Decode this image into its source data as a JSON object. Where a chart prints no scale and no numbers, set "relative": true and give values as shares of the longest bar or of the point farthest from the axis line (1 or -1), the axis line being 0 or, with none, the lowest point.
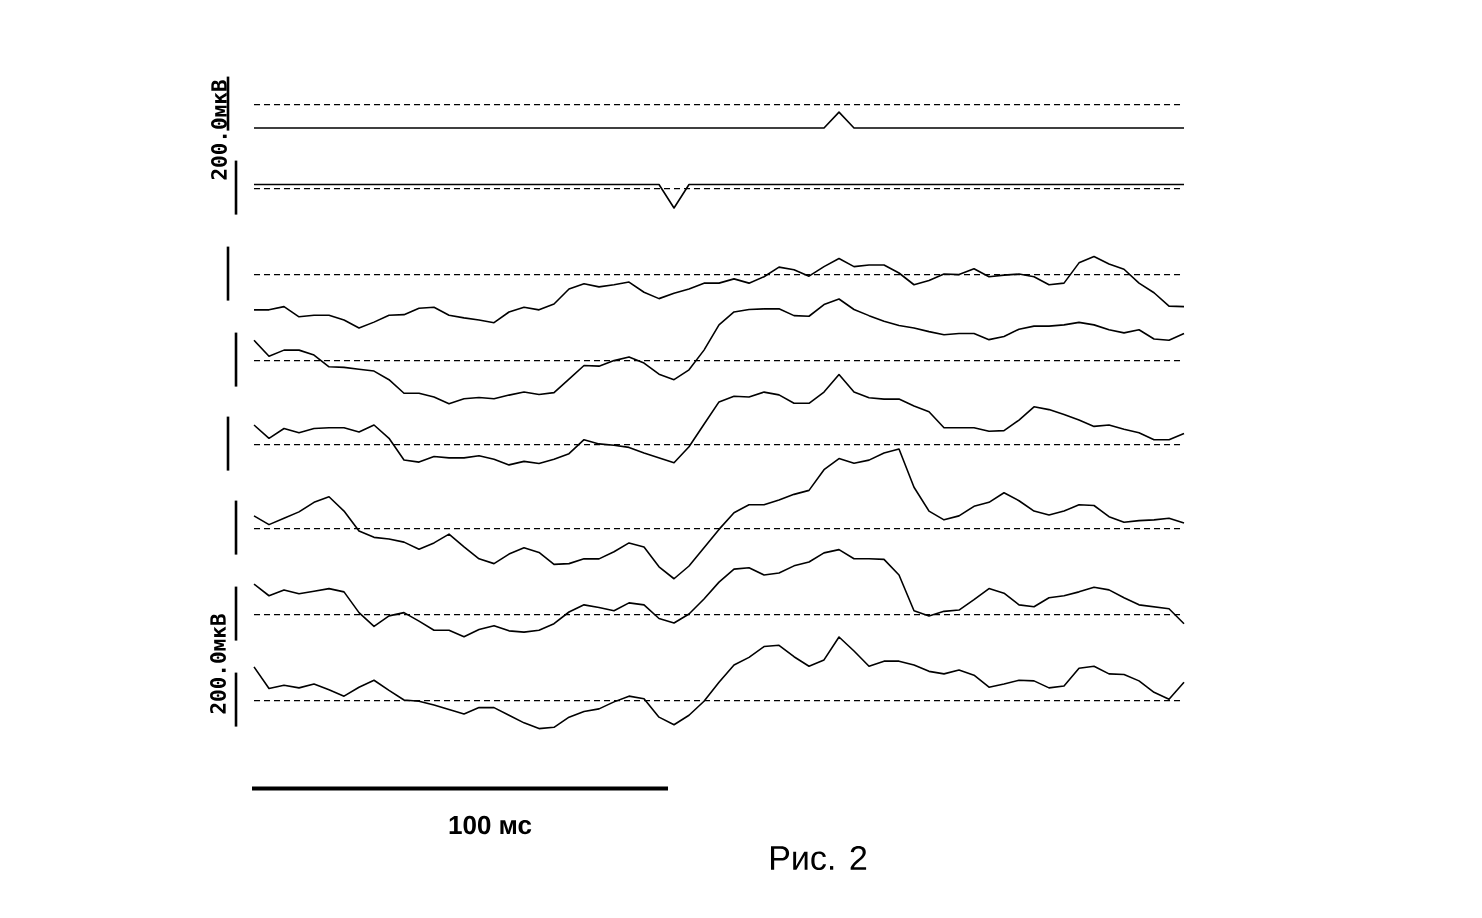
{
  "chart_data": [
    {
      "type": "line",
      "relative": true,
      "color": "#000000",
      "annotations": [
        "200.0мкВ"
      ],
      "ref_lines": [
        {
          "axis": "y",
          "value": 0,
          "line_style": "dashed"
        }
      ],
      "categories": [
        null,
        null,
        null,
        null,
        null,
        null,
        null,
        null,
        null,
        null,
        null,
        null,
        null,
        null,
        null,
        null,
        null,
        null,
        null,
        null,
        null,
        null,
        null,
        null,
        null,
        null,
        null,
        null,
        null,
        null,
        null,
        null,
        null,
        null,
        null,
        null,
        null,
        null,
        null,
        null,
        null,
        null,
        null,
        null,
        null,
        null,
        null,
        null,
        null,
        null,
        null,
        null,
        null,
        null,
        null,
        null,
        null,
        null,
        null,
        null,
        null,
        null,
        null
      ],
      "values": [
        -1,
        -1,
        -1,
        -1,
        -1,
        -1,
        -1,
        -1,
        -1,
        -1,
        -1,
        -1,
        -1,
        -1,
        -1,
        -1,
        -1,
        -1,
        -1,
        -1,
        -1,
        -1,
        -1,
        -1,
        -1,
        -1,
        -1,
        -1,
        -1,
        -1,
        -1,
        -1,
        -1,
        -1,
        -1,
        -1,
        -1,
        -1,
        -1,
        -0.32,
        -1,
        -1,
        -1,
        -1,
        -1,
        -1,
        -1,
        -1,
        -1,
        -1,
        -1,
        -1,
        -1,
        -1,
        -1,
        -1,
        -1,
        -1,
        -1,
        -1,
        -1,
        -1,
        -1
      ]
    },
    {
      "type": "line",
      "relative": true,
      "color": "#000000",
      "ref_lines": [
        {
          "axis": "y",
          "value": 0,
          "line_style": "dashed"
        }
      ],
      "categories": [
        null,
        null,
        null,
        null,
        null,
        null,
        null,
        null,
        null,
        null,
        null,
        null,
        null,
        null,
        null,
        null,
        null,
        null,
        null,
        null,
        null,
        null,
        null,
        null,
        null,
        null,
        null,
        null,
        null,
        null,
        null,
        null,
        null,
        null,
        null,
        null,
        null,
        null,
        null,
        null,
        null,
        null,
        null,
        null,
        null,
        null,
        null,
        null,
        null,
        null,
        null,
        null,
        null,
        null,
        null,
        null,
        null,
        null,
        null,
        null,
        null,
        null,
        null
      ],
      "values": [
        0.21,
        0.21,
        0.21,
        0.21,
        0.21,
        0.21,
        0.21,
        0.21,
        0.21,
        0.21,
        0.21,
        0.21,
        0.21,
        0.21,
        0.21,
        0.21,
        0.21,
        0.21,
        0.21,
        0.21,
        0.21,
        0.21,
        0.21,
        0.21,
        0.21,
        0.21,
        0.21,
        0.21,
        -1,
        0.21,
        0.21,
        0.21,
        0.21,
        0.21,
        0.21,
        0.21,
        0.21,
        0.21,
        0.21,
        0.21,
        0.21,
        0.21,
        0.21,
        0.21,
        0.21,
        0.21,
        0.21,
        0.21,
        0.21,
        0.21,
        0.21,
        0.21,
        0.21,
        0.21,
        0.21,
        0.21,
        0.21,
        0.21,
        0.21,
        0.21,
        0.21,
        0.21,
        0.21
      ]
    },
    {
      "type": "line",
      "relative": true,
      "color": "#000000",
      "ref_lines": [
        {
          "axis": "y",
          "value": 0,
          "line_style": "dashed"
        }
      ],
      "categories": [
        null,
        null,
        null,
        null,
        null,
        null,
        null,
        null,
        null,
        null,
        null,
        null,
        null,
        null,
        null,
        null,
        null,
        null,
        null,
        null,
        null,
        null,
        null,
        null,
        null,
        null,
        null,
        null,
        null,
        null,
        null,
        null,
        null,
        null,
        null,
        null,
        null,
        null,
        null,
        null,
        null,
        null,
        null,
        null,
        null,
        null,
        null,
        null,
        null,
        null,
        null,
        null,
        null,
        null,
        null,
        null,
        null,
        null,
        null,
        null,
        null,
        null,
        null
      ],
      "values": [
        -0.66,
        -0.66,
        -0.6,
        -0.79,
        -0.76,
        -0.76,
        -0.85,
        -1,
        -0.89,
        -0.76,
        -0.75,
        -0.63,
        -0.61,
        -0.76,
        -0.81,
        -0.85,
        -0.9,
        -0.7,
        -0.61,
        -0.66,
        -0.55,
        -0.27,
        -0.17,
        -0.23,
        -0.19,
        -0.14,
        -0.33,
        -0.45,
        -0.35,
        -0.27,
        -0.16,
        -0.16,
        -0.08,
        -0.16,
        -0.04,
        0.14,
        0.09,
        -0.03,
        0.15,
        0.3,
        0.15,
        0.18,
        0.18,
        0.03,
        -0.19,
        -0.11,
        0.01,
        0,
        0.11,
        -0.04,
        -0.01,
        0.01,
        -0.04,
        -0.19,
        -0.16,
        0.22,
        0.34,
        0.2,
        0.1,
        -0.16,
        -0.34,
        -0.59,
        -0.6
      ]
    },
    {
      "type": "line",
      "relative": true,
      "color": "#000000",
      "ref_lines": [
        {
          "axis": "y",
          "value": 0,
          "line_style": "dashed"
        }
      ],
      "categories": [
        null,
        null,
        null,
        null,
        null,
        null,
        null,
        null,
        null,
        null,
        null,
        null,
        null,
        null,
        null,
        null,
        null,
        null,
        null,
        null,
        null,
        null,
        null,
        null,
        null,
        null,
        null,
        null,
        null,
        null,
        null,
        null,
        null,
        null,
        null,
        null,
        null,
        null,
        null,
        null,
        null,
        null,
        null,
        null,
        null,
        null,
        null,
        null,
        null,
        null,
        null,
        null,
        null,
        null,
        null,
        null,
        null,
        null,
        null,
        null,
        null,
        null,
        null
      ],
      "values": [
        0.33,
        0.07,
        0.17,
        0.17,
        0.09,
        -0.1,
        -0.11,
        -0.14,
        -0.17,
        -0.31,
        -0.53,
        -0.53,
        -0.59,
        -0.7,
        -0.62,
        -0.6,
        -0.62,
        -0.56,
        -0.51,
        -0.55,
        -0.52,
        -0.3,
        -0.08,
        -0.09,
        0,
        0.06,
        -0.04,
        -0.22,
        -0.31,
        -0.15,
        0.17,
        0.58,
        0.79,
        0.83,
        0.84,
        0.84,
        0.73,
        0.72,
        0.91,
        1,
        0.83,
        0.73,
        0.64,
        0.57,
        0.53,
        0.47,
        0.42,
        0.44,
        0.44,
        0.34,
        0.39,
        0.51,
        0.56,
        0.56,
        0.58,
        0.62,
        0.58,
        0.5,
        0.45,
        0.5,
        0.35,
        0.33,
        0.44
      ]
    },
    {
      "type": "line",
      "relative": true,
      "color": "#000000",
      "ref_lines": [
        {
          "axis": "y",
          "value": 0,
          "line_style": "dashed"
        }
      ],
      "categories": [
        null,
        null,
        null,
        null,
        null,
        null,
        null,
        null,
        null,
        null,
        null,
        null,
        null,
        null,
        null,
        null,
        null,
        null,
        null,
        null,
        null,
        null,
        null,
        null,
        null,
        null,
        null,
        null,
        null,
        null,
        null,
        null,
        null,
        null,
        null,
        null,
        null,
        null,
        null,
        null,
        null,
        null,
        null,
        null,
        null,
        null,
        null,
        null,
        null,
        null,
        null,
        null,
        null,
        null,
        null,
        null,
        null,
        null,
        null,
        null,
        null,
        null,
        null
      ],
      "values": [
        0.28,
        0.09,
        0.23,
        0.17,
        0.23,
        0.24,
        0.24,
        0.18,
        0.28,
        0.09,
        -0.22,
        -0.25,
        -0.17,
        -0.19,
        -0.19,
        -0.16,
        -0.21,
        -0.29,
        -0.24,
        -0.27,
        -0.21,
        -0.13,
        0.07,
        0.01,
        -0.01,
        -0.04,
        -0.12,
        -0.19,
        -0.26,
        -0.03,
        0.29,
        0.61,
        0.69,
        0.68,
        0.75,
        0.71,
        0.59,
        0.59,
        0.75,
        1,
        0.75,
        0.67,
        0.65,
        0.65,
        0.55,
        0.47,
        0.24,
        0.24,
        0.24,
        0.19,
        0.2,
        0.35,
        0.54,
        0.5,
        0.43,
        0.35,
        0.26,
        0.28,
        0.22,
        0.17,
        0.07,
        0.07,
        0.16
      ]
    },
    {
      "type": "line",
      "relative": true,
      "color": "#000000",
      "ref_lines": [
        {
          "axis": "y",
          "value": 0,
          "line_style": "dashed"
        }
      ],
      "categories": [
        null,
        null,
        null,
        null,
        null,
        null,
        null,
        null,
        null,
        null,
        null,
        null,
        null,
        null,
        null,
        null,
        null,
        null,
        null,
        null,
        null,
        null,
        null,
        null,
        null,
        null,
        null,
        null,
        null,
        null,
        null,
        null,
        null,
        null,
        null,
        null,
        null,
        null,
        null,
        null,
        null,
        null,
        null,
        null,
        null,
        null,
        null,
        null,
        null,
        null,
        null,
        null,
        null,
        null,
        null,
        null,
        null,
        null,
        null,
        null,
        null,
        null,
        null
      ],
      "values": [
        0.16,
        0.05,
        0.13,
        0.21,
        0.33,
        0.4,
        0.22,
        -0.03,
        -0.11,
        -0.13,
        -0.17,
        -0.26,
        -0.18,
        -0.07,
        -0.23,
        -0.38,
        -0.44,
        -0.32,
        -0.24,
        -0.3,
        -0.45,
        -0.44,
        -0.38,
        -0.38,
        -0.29,
        -0.18,
        -0.23,
        -0.48,
        -0.63,
        -0.47,
        -0.24,
        -0.01,
        0.2,
        0.3,
        0.3,
        0.36,
        0.43,
        0.48,
        0.74,
        0.88,
        0.82,
        0.86,
        0.95,
        1,
        0.52,
        0.22,
        0.11,
        0.16,
        0.28,
        0.33,
        0.45,
        0.35,
        0.22,
        0.17,
        0.22,
        0.3,
        0.29,
        0.15,
        0.08,
        0.1,
        0.11,
        0.13,
        0.07
      ]
    },
    {
      "type": "line",
      "relative": true,
      "color": "#000000",
      "ref_lines": [
        {
          "axis": "y",
          "value": 0,
          "line_style": "dashed"
        }
      ],
      "categories": [
        null,
        null,
        null,
        null,
        null,
        null,
        null,
        null,
        null,
        null,
        null,
        null,
        null,
        null,
        null,
        null,
        null,
        null,
        null,
        null,
        null,
        null,
        null,
        null,
        null,
        null,
        null,
        null,
        null,
        null,
        null,
        null,
        null,
        null,
        null,
        null,
        null,
        null,
        null,
        null,
        null,
        null,
        null,
        null,
        null,
        null,
        null,
        null,
        null,
        null,
        null,
        null,
        null,
        null,
        null,
        null,
        null,
        null,
        null,
        null,
        null,
        null,
        null
      ],
      "values": [
        0.47,
        0.29,
        0.38,
        0.32,
        0.36,
        0.4,
        0.35,
        0.03,
        -0.18,
        -0.02,
        0.03,
        -0.1,
        -0.24,
        -0.24,
        -0.34,
        -0.23,
        -0.17,
        -0.25,
        -0.27,
        -0.24,
        -0.14,
        0.04,
        0.15,
        0.11,
        0.06,
        0.18,
        0.15,
        -0.06,
        -0.13,
        0.01,
        0.24,
        0.5,
        0.7,
        0.72,
        0.61,
        0.64,
        0.75,
        0.81,
        0.95,
        1,
        0.86,
        0.86,
        0.85,
        0.61,
        0.06,
        -0.02,
        0.05,
        0.07,
        0.23,
        0.4,
        0.33,
        0.15,
        0.12,
        0.26,
        0.29,
        0.35,
        0.42,
        0.38,
        0.26,
        0.15,
        0.12,
        0.09,
        -0.14
      ]
    },
    {
      "type": "line",
      "relative": true,
      "color": "#000000",
      "annotations": [
        "200.0мкВ",
        "100 мс",
        "Рис. 2"
      ],
      "ref_lines": [
        {
          "axis": "y",
          "value": 0,
          "line_style": "dashed"
        }
      ],
      "categories": [
        null,
        null,
        null,
        null,
        null,
        null,
        null,
        null,
        null,
        null,
        null,
        null,
        null,
        null,
        null,
        null,
        null,
        null,
        null,
        null,
        null,
        null,
        null,
        null,
        null,
        null,
        null,
        null,
        null,
        null,
        null,
        null,
        null,
        null,
        null,
        null,
        null,
        null,
        null,
        null,
        null,
        null,
        null,
        null,
        null,
        null,
        null,
        null,
        null,
        null,
        null,
        null,
        null,
        null,
        null,
        null,
        null,
        null,
        null,
        null,
        null,
        null,
        null
      ],
      "values": [
        0.53,
        0.19,
        0.24,
        0.2,
        0.26,
        0.17,
        0.07,
        0.21,
        0.32,
        0.16,
        0.01,
        -0.01,
        -0.07,
        -0.14,
        -0.21,
        -0.11,
        -0.11,
        -0.23,
        -0.35,
        -0.44,
        -0.42,
        -0.26,
        -0.17,
        -0.13,
        -0.02,
        0.07,
        0.03,
        -0.26,
        -0.38,
        -0.23,
        -0.01,
        0.29,
        0.56,
        0.68,
        0.85,
        0.87,
        0.69,
        0.54,
        0.64,
        1,
        0.78,
        0.54,
        0.62,
        0.62,
        0.56,
        0.46,
        0.42,
        0.48,
        0.4,
        0.21,
        0.26,
        0.32,
        0.31,
        0.2,
        0.23,
        0.51,
        0.54,
        0.42,
        0.41,
        0.31,
        0.13,
        0.02,
        0.29
      ]
    }
  ]
}
